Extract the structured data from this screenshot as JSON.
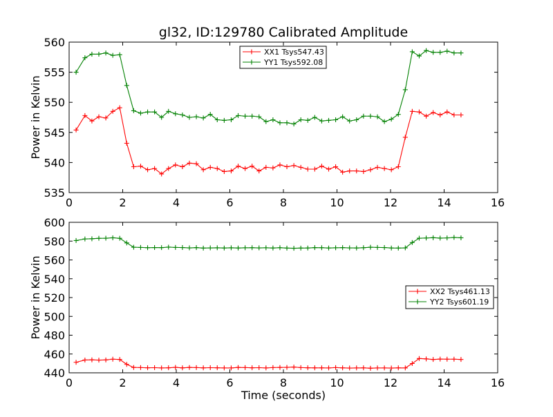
{
  "chart_data": [
    {
      "type": "line",
      "title": "gl32, ID:129780 Calibrated Amplitude",
      "xlabel": "",
      "ylabel": "Power in Kelvin",
      "xlim": [
        0,
        16
      ],
      "ylim": [
        535,
        560
      ],
      "xticks": [
        0,
        2,
        4,
        6,
        8,
        10,
        12,
        14,
        16
      ],
      "yticks": [
        535,
        540,
        545,
        550,
        555,
        560
      ],
      "grid": false,
      "legend_position": "upper-center",
      "x": [
        0.26,
        0.59,
        0.85,
        1.11,
        1.37,
        1.63,
        1.89,
        2.15,
        2.41,
        2.67,
        2.93,
        3.19,
        3.45,
        3.71,
        3.97,
        4.23,
        4.49,
        4.75,
        5.01,
        5.27,
        5.53,
        5.79,
        6.05,
        6.31,
        6.57,
        6.83,
        7.09,
        7.35,
        7.61,
        7.87,
        8.13,
        8.39,
        8.65,
        8.91,
        9.17,
        9.43,
        9.69,
        9.95,
        10.21,
        10.47,
        10.73,
        10.99,
        11.25,
        11.51,
        11.77,
        12.03,
        12.29,
        12.55,
        12.81,
        13.07,
        13.33,
        13.59,
        13.85,
        14.11,
        14.37,
        14.63
      ],
      "series": [
        {
          "name": "XX1 Tsys547.43",
          "color": "#ff0000",
          "values": [
            545.4,
            547.8,
            546.9,
            547.6,
            547.4,
            548.5,
            549.1,
            543.2,
            539.3,
            539.4,
            538.8,
            539.0,
            538.1,
            539.0,
            539.6,
            539.3,
            539.9,
            539.8,
            538.8,
            539.2,
            539.0,
            538.5,
            538.6,
            539.4,
            539.0,
            539.4,
            538.6,
            539.2,
            539.1,
            539.6,
            539.3,
            539.5,
            539.2,
            538.9,
            538.9,
            539.4,
            538.9,
            539.3,
            538.4,
            538.6,
            538.6,
            538.5,
            538.8,
            539.2,
            539.0,
            538.8,
            539.3,
            544.2,
            548.5,
            548.4,
            547.7,
            548.3,
            547.9,
            548.4,
            547.9,
            547.9
          ]
        },
        {
          "name": "YY1 Tsys592.08",
          "color": "#008000",
          "values": [
            555.0,
            557.4,
            558.0,
            558.0,
            558.2,
            557.8,
            557.9,
            552.8,
            548.6,
            548.2,
            548.4,
            548.4,
            547.5,
            548.5,
            548.1,
            547.9,
            547.5,
            547.6,
            547.4,
            548.0,
            547.1,
            547.0,
            547.1,
            547.8,
            547.7,
            547.7,
            547.6,
            546.8,
            547.1,
            546.6,
            546.6,
            546.4,
            547.1,
            547.0,
            547.5,
            546.9,
            547.0,
            547.1,
            547.6,
            546.9,
            547.1,
            547.7,
            547.7,
            547.6,
            546.8,
            547.2,
            548.0,
            552.1,
            558.4,
            557.7,
            558.6,
            558.3,
            558.3,
            558.5,
            558.2,
            558.2
          ]
        }
      ]
    },
    {
      "type": "line",
      "title": "",
      "xlabel": "Time (seconds)",
      "ylabel": "Power in Kelvin",
      "xlim": [
        0,
        16
      ],
      "ylim": [
        440,
        600
      ],
      "xticks": [
        0,
        2,
        4,
        6,
        8,
        10,
        12,
        14,
        16
      ],
      "yticks": [
        440,
        460,
        480,
        500,
        520,
        540,
        560,
        580,
        600
      ],
      "grid": false,
      "legend_position": "center-right",
      "x": [
        0.26,
        0.59,
        0.85,
        1.11,
        1.37,
        1.63,
        1.89,
        2.15,
        2.41,
        2.67,
        2.93,
        3.19,
        3.45,
        3.71,
        3.97,
        4.23,
        4.49,
        4.75,
        5.01,
        5.27,
        5.53,
        5.79,
        6.05,
        6.31,
        6.57,
        6.83,
        7.09,
        7.35,
        7.61,
        7.87,
        8.13,
        8.39,
        8.65,
        8.91,
        9.17,
        9.43,
        9.69,
        9.95,
        10.21,
        10.47,
        10.73,
        10.99,
        11.25,
        11.51,
        11.77,
        12.03,
        12.29,
        12.55,
        12.81,
        13.07,
        13.33,
        13.59,
        13.85,
        14.11,
        14.37,
        14.63
      ],
      "series": [
        {
          "name": "XX2 Tsys461.13",
          "color": "#ff0000",
          "values": [
            451.2,
            453.6,
            453.8,
            453.5,
            453.7,
            454.5,
            454.2,
            449.0,
            445.7,
            445.6,
            445.4,
            445.5,
            445.2,
            445.4,
            445.8,
            445.3,
            445.7,
            445.6,
            445.3,
            445.5,
            445.4,
            445.2,
            445.2,
            445.7,
            445.6,
            445.4,
            445.5,
            445.2,
            445.6,
            445.7,
            445.8,
            446.1,
            445.6,
            445.4,
            445.3,
            445.3,
            445.2,
            445.6,
            445.3,
            445.1,
            445.2,
            445.3,
            444.9,
            445.2,
            445.2,
            445.1,
            445.3,
            445.2,
            449.9,
            455.2,
            454.8,
            454.2,
            454.6,
            454.5,
            454.5,
            454.2
          ]
        },
        {
          "name": "YY2 Tsys601.19",
          "color": "#008000",
          "values": [
            580.6,
            582.3,
            582.5,
            583.0,
            583.1,
            583.5,
            583.0,
            578.1,
            573.5,
            573.3,
            573.0,
            573.2,
            573.1,
            573.6,
            573.3,
            573.2,
            572.8,
            573.1,
            572.6,
            572.8,
            572.9,
            572.7,
            572.9,
            572.7,
            572.9,
            573.0,
            572.8,
            572.9,
            572.7,
            573.0,
            572.6,
            572.4,
            572.6,
            572.7,
            573.1,
            573.0,
            572.7,
            572.9,
            573.1,
            572.8,
            572.7,
            573.0,
            573.5,
            573.3,
            573.2,
            572.7,
            572.6,
            572.8,
            578.5,
            583.1,
            583.3,
            583.6,
            583.2,
            583.4,
            583.9,
            583.5
          ]
        }
      ]
    }
  ]
}
